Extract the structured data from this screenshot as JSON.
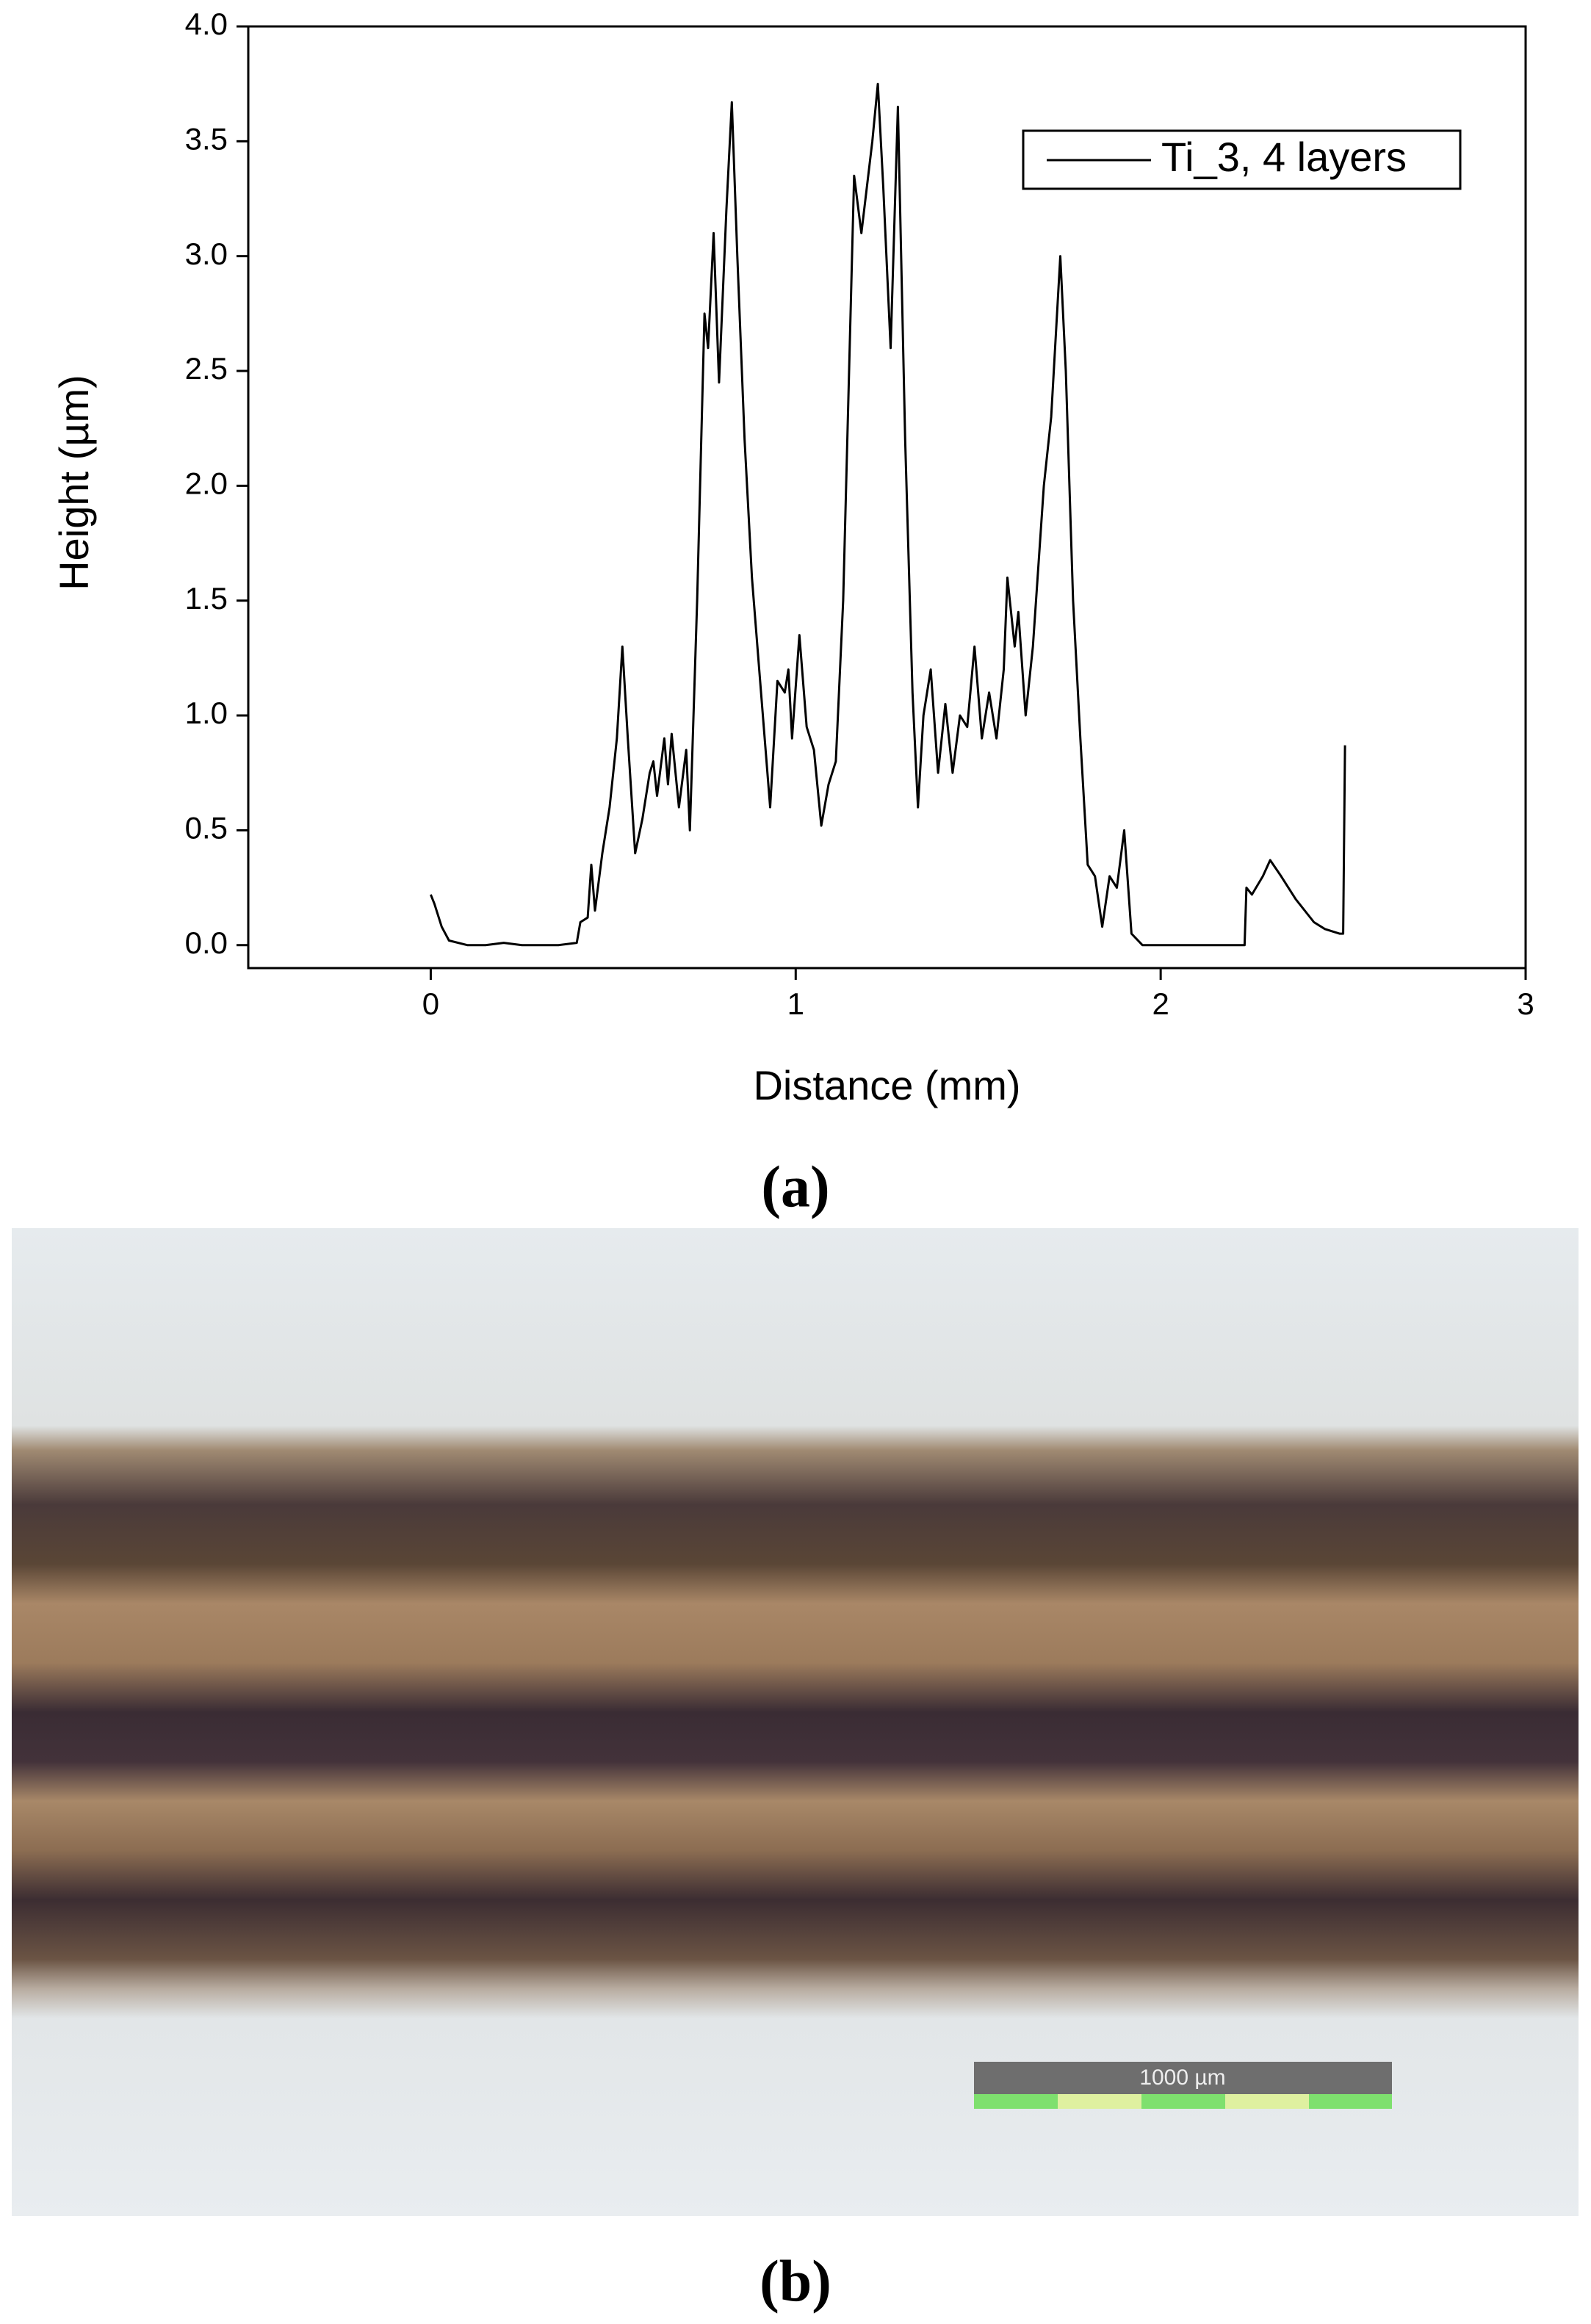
{
  "chart_data": {
    "type": "line",
    "xlabel": "Distance (mm)",
    "ylabel": "Height (µm)",
    "xlim": [
      -0.5,
      3
    ],
    "xticks": [
      0,
      1,
      2,
      3
    ],
    "ylim": [
      -0.1,
      4.0
    ],
    "yticks": [
      {
        "value": 0,
        "label": "0.0"
      },
      0.5,
      {
        "value": 1,
        "label": "1.0"
      },
      1.5,
      {
        "value": 2,
        "label": "2.0"
      },
      2.5,
      {
        "value": 3,
        "label": "3.0"
      },
      3.5,
      {
        "value": 4,
        "label": "4.0"
      }
    ],
    "legend": "upper right",
    "x": [
      0,
      0.01,
      0.03,
      0.05,
      0.1,
      0.15,
      0.2,
      0.25,
      0.3,
      0.35,
      0.4,
      0.41,
      0.43,
      0.44,
      0.45,
      0.47,
      0.49,
      0.51,
      0.525,
      0.54,
      0.56,
      0.58,
      0.6,
      0.61,
      0.62,
      0.64,
      0.65,
      0.66,
      0.68,
      0.7,
      0.71,
      0.73,
      0.75,
      0.76,
      0.775,
      0.79,
      0.81,
      0.825,
      0.84,
      0.86,
      0.88,
      0.9,
      0.93,
      0.95,
      0.97,
      0.98,
      0.99,
      1.01,
      1.03,
      1.05,
      1.07,
      1.09,
      1.11,
      1.13,
      1.16,
      1.18,
      1.21,
      1.225,
      1.24,
      1.26,
      1.28,
      1.3,
      1.32,
      1.335,
      1.35,
      1.37,
      1.39,
      1.41,
      1.43,
      1.45,
      1.47,
      1.49,
      1.51,
      1.53,
      1.55,
      1.57,
      1.58,
      1.6,
      1.61,
      1.63,
      1.65,
      1.68,
      1.7,
      1.725,
      1.74,
      1.76,
      1.78,
      1.8,
      1.82,
      1.84,
      1.86,
      1.88,
      1.9,
      1.92,
      1.95,
      2.0,
      2.1,
      2.2,
      2.23,
      2.235,
      2.25,
      2.28,
      2.3,
      2.33,
      2.37,
      2.42,
      2.45,
      2.49,
      2.5,
      2.505
    ],
    "series": [
      {
        "name": "Ti_3, 4 layers",
        "color": "#000000",
        "values": [
          0.22,
          0.18,
          0.08,
          0.02,
          0,
          0,
          0.01,
          0,
          0,
          0,
          0.01,
          0.1,
          0.12,
          0.35,
          0.15,
          0.4,
          0.6,
          0.9,
          1.3,
          0.9,
          0.4,
          0.55,
          0.75,
          0.8,
          0.65,
          0.9,
          0.7,
          0.92,
          0.6,
          0.85,
          0.5,
          1.5,
          2.75,
          2.6,
          3.1,
          2.45,
          3.2,
          3.67,
          3.0,
          2.2,
          1.6,
          1.2,
          0.6,
          1.15,
          1.1,
          1.2,
          0.9,
          1.35,
          0.95,
          0.85,
          0.52,
          0.7,
          0.8,
          1.5,
          3.35,
          3.1,
          3.5,
          3.75,
          3.3,
          2.6,
          3.65,
          2.2,
          1.1,
          0.6,
          1.0,
          1.2,
          0.75,
          1.05,
          0.75,
          1.0,
          0.95,
          1.3,
          0.9,
          1.1,
          0.9,
          1.2,
          1.6,
          1.3,
          1.45,
          1.0,
          1.3,
          2.0,
          2.3,
          3.0,
          2.5,
          1.5,
          0.9,
          0.35,
          0.3,
          0.08,
          0.3,
          0.25,
          0.5,
          0.05,
          0,
          0,
          0,
          0,
          0,
          0.25,
          0.22,
          0.3,
          0.37,
          0.3,
          0.2,
          0.1,
          0.07,
          0.05,
          0.05,
          0.87
        ]
      }
    ]
  },
  "panel_labels": [
    "(a)",
    "(b)"
  ],
  "micrograph": {
    "scale_bar": "1000 µm"
  }
}
